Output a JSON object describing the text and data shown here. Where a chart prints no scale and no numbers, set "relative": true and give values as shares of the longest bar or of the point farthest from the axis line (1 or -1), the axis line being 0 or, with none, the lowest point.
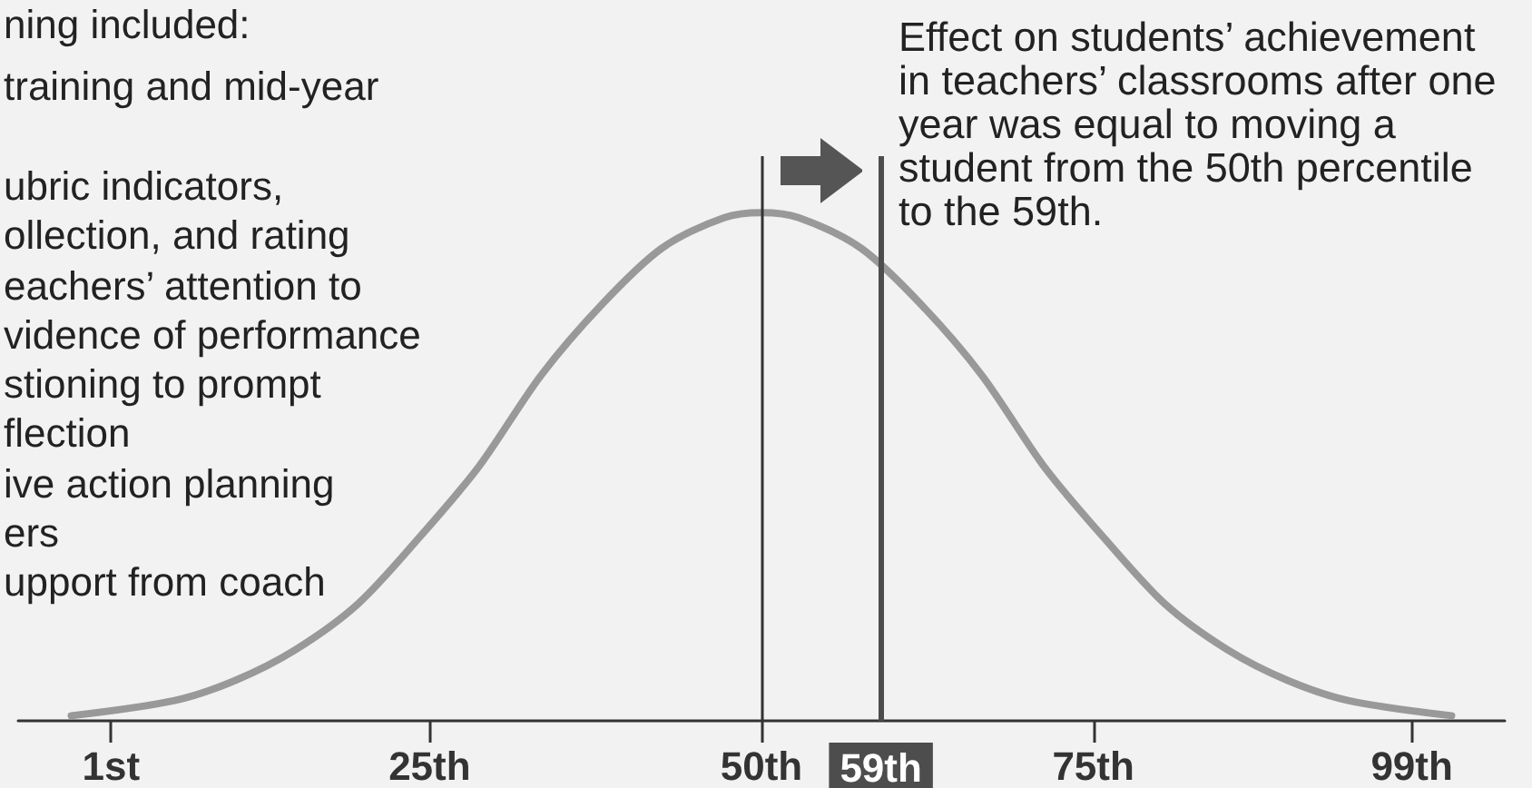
{
  "chart_data": {
    "type": "line",
    "relative": true,
    "x": [
      -2.0,
      5.8,
      10.4,
      14.9,
      19.6,
      24.2,
      28.7,
      33.4,
      38.0,
      42.5,
      47.2,
      50,
      52.8,
      57.5,
      62.0,
      66.6,
      71.3,
      75.8,
      80.4,
      85.1,
      89.6,
      94.2,
      102.0
    ],
    "series": [
      {
        "color": "#999999",
        "values": [
          0.01,
          0.04,
          0.08,
          0.14,
          0.23,
          0.36,
          0.5,
          0.68,
          0.82,
          0.93,
          0.99,
          1,
          0.99,
          0.93,
          0.82,
          0.68,
          0.5,
          0.36,
          0.23,
          0.14,
          0.08,
          0.04,
          0.01
        ]
      }
    ],
    "xlim": [
      -6,
      106
    ],
    "xticks": [
      {
        "value": 1,
        "label": "1st"
      },
      {
        "value": 25,
        "label": "25th"
      },
      {
        "value": 50,
        "label": "50th"
      },
      {
        "value": 75,
        "label": "75th"
      },
      {
        "value": 99,
        "label": "99th"
      }
    ],
    "ref_lines": [
      {
        "axis": "x",
        "value": 50,
        "color": "#333333"
      },
      {
        "axis": "x",
        "value": 59,
        "label": "59th",
        "color": "#4d4d4d"
      }
    ],
    "annotations": [
      "ning included:",
      "training and mid-year",
      "ubric indicators,\nollection, and rating\neachers’ attention to\nvidence of performance\nstioning to prompt\nflection\nive action planning\ners\nupport from coach",
      "Effect on students’ achievement\nin teachers’ classrooms after one\nyear was equal to moving a\nstudent from the 50th percentile\nto the 59th."
    ],
    "marker": "none",
    "line_style": "solid",
    "grid": false
  }
}
